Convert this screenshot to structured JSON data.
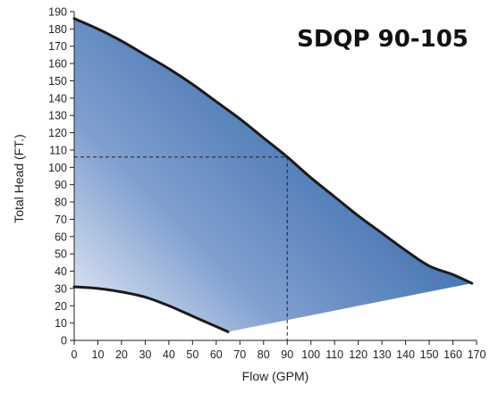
{
  "chart_data": {
    "type": "area",
    "title": "SDQP 90-105",
    "xlabel": "Flow (GPM)",
    "ylabel": "Total Head (FT.)",
    "xlim": [
      0,
      170
    ],
    "ylim": [
      0,
      190
    ],
    "x_ticks": [
      0,
      10,
      20,
      30,
      40,
      50,
      60,
      70,
      80,
      90,
      100,
      110,
      120,
      130,
      140,
      150,
      160,
      170
    ],
    "y_ticks": [
      0,
      10,
      20,
      30,
      40,
      50,
      60,
      70,
      80,
      90,
      100,
      110,
      120,
      130,
      140,
      150,
      160,
      170,
      180,
      190
    ],
    "grid": false,
    "series": [
      {
        "role": "max_curve",
        "x": [
          0,
          10,
          20,
          30,
          40,
          50,
          60,
          70,
          80,
          90,
          100,
          110,
          120,
          130,
          140,
          150,
          160,
          168
        ],
        "y": [
          186,
          180,
          173,
          165,
          157,
          148,
          138,
          128,
          117,
          106,
          94,
          83,
          72,
          62,
          52,
          43,
          38,
          33
        ]
      },
      {
        "role": "min_curve",
        "x": [
          0,
          10,
          20,
          30,
          40,
          50,
          60,
          65
        ],
        "y": [
          31,
          30,
          28,
          25,
          20,
          14,
          8,
          5
        ]
      }
    ],
    "shaded_region_bottom_edge": {
      "x": [
        65,
        168
      ],
      "y": [
        5,
        33
      ]
    },
    "reference_point": {
      "x": 90,
      "y": 106
    },
    "colors": {
      "fill_light": "#eef2f9",
      "fill_mid": "#7f9fcf",
      "fill_dark": "#3d6fae",
      "curve": "#1a1a1a",
      "axis": "#231f20"
    }
  }
}
